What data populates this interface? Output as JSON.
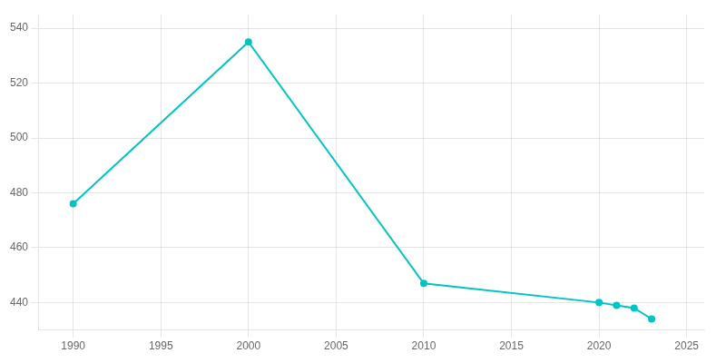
{
  "chart_data": {
    "type": "line",
    "x": [
      1990,
      2000,
      2010,
      2020,
      2021,
      2022,
      2023
    ],
    "values": [
      476,
      535,
      447,
      440,
      439,
      438,
      434
    ],
    "color": "#00C4C4",
    "marker": "circle",
    "xlim": [
      1988,
      2026
    ],
    "ylim": [
      430,
      545
    ],
    "xticks": [
      1990,
      1995,
      2000,
      2005,
      2010,
      2015,
      2020,
      2025
    ],
    "yticks": [
      440,
      460,
      480,
      500,
      520,
      540
    ],
    "grid": true
  }
}
